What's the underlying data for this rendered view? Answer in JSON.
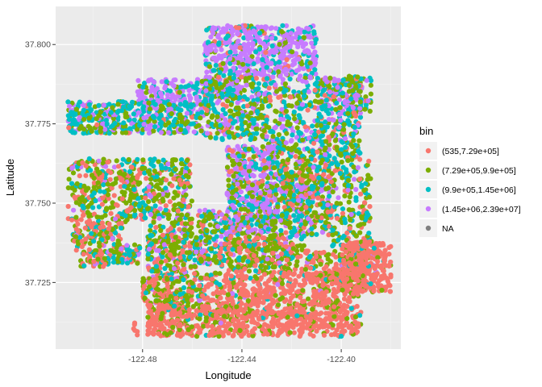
{
  "chart_data": {
    "type": "scatter",
    "xlabel": "Longitude",
    "ylabel": "Latitude",
    "xlim": [
      -122.515,
      -122.376
    ],
    "ylim": [
      37.704,
      37.812
    ],
    "xticks": [
      -122.48,
      -122.44,
      -122.4
    ],
    "xtick_labels": [
      "-122.48",
      "-122.44",
      "-122.40"
    ],
    "yticks": [
      37.725,
      37.75,
      37.775,
      37.8
    ],
    "ytick_labels": [
      "37.725",
      "37.750",
      "37.775",
      "37.800"
    ],
    "grid": true,
    "legend": {
      "title": "bin",
      "placement": "right",
      "entries": [
        {
          "label": "(535,7.29e+05]",
          "color": "#F8766D"
        },
        {
          "label": "(7.29e+05,9.9e+05]",
          "color": "#7CAE00"
        },
        {
          "label": "(9.9e+05,1.45e+06]",
          "color": "#00BFC4"
        },
        {
          "label": "(1.45e+06,2.39e+07]",
          "color": "#C77CFF"
        },
        {
          "label": "NA",
          "color": "#808080"
        }
      ]
    },
    "regions": [
      {
        "lon": [
          -122.455,
          -122.41
        ],
        "lat": [
          37.79,
          37.806
        ],
        "n": 520,
        "w": [
          0.05,
          0.1,
          0.2,
          0.65
        ]
      },
      {
        "lon": [
          -122.41,
          -122.388
        ],
        "lat": [
          37.778,
          37.79
        ],
        "n": 120,
        "w": [
          0.1,
          0.25,
          0.35,
          0.3
        ]
      },
      {
        "lon": [
          -122.482,
          -122.44
        ],
        "lat": [
          37.782,
          37.789
        ],
        "n": 190,
        "w": [
          0.05,
          0.1,
          0.2,
          0.65
        ]
      },
      {
        "lon": [
          -122.51,
          -122.48
        ],
        "lat": [
          37.772,
          37.782
        ],
        "n": 260,
        "w": [
          0.05,
          0.25,
          0.45,
          0.25
        ]
      },
      {
        "lon": [
          -122.48,
          -122.455
        ],
        "lat": [
          37.772,
          37.782
        ],
        "n": 210,
        "w": [
          0.05,
          0.25,
          0.4,
          0.3
        ]
      },
      {
        "lon": [
          -122.455,
          -122.43
        ],
        "lat": [
          37.77,
          37.79
        ],
        "n": 300,
        "w": [
          0.1,
          0.35,
          0.35,
          0.2
        ]
      },
      {
        "lon": [
          -122.43,
          -122.392
        ],
        "lat": [
          37.764,
          37.79
        ],
        "n": 460,
        "w": [
          0.1,
          0.3,
          0.35,
          0.25
        ]
      },
      {
        "lon": [
          -122.51,
          -122.478
        ],
        "lat": [
          37.744,
          37.764
        ],
        "n": 340,
        "w": [
          0.3,
          0.5,
          0.15,
          0.05
        ]
      },
      {
        "lon": [
          -122.478,
          -122.46
        ],
        "lat": [
          37.738,
          37.764
        ],
        "n": 250,
        "w": [
          0.15,
          0.5,
          0.25,
          0.1
        ]
      },
      {
        "lon": [
          -122.508,
          -122.488
        ],
        "lat": [
          37.734,
          37.744
        ],
        "n": 140,
        "w": [
          0.4,
          0.35,
          0.2,
          0.05
        ]
      },
      {
        "lon": [
          -122.505,
          -122.493
        ],
        "lat": [
          37.73,
          37.734
        ],
        "n": 45,
        "w": [
          0.4,
          0.3,
          0.25,
          0.05
        ]
      },
      {
        "lon": [
          -122.492,
          -122.481
        ],
        "lat": [
          37.731,
          37.737
        ],
        "n": 55,
        "w": [
          0.2,
          0.3,
          0.4,
          0.1
        ]
      },
      {
        "lon": [
          -122.446,
          -122.425
        ],
        "lat": [
          37.74,
          37.768
        ],
        "n": 520,
        "w": [
          0.1,
          0.25,
          0.25,
          0.4
        ]
      },
      {
        "lon": [
          -122.425,
          -122.404
        ],
        "lat": [
          37.74,
          37.764
        ],
        "n": 420,
        "w": [
          0.2,
          0.35,
          0.3,
          0.15
        ]
      },
      {
        "lon": [
          -122.404,
          -122.388
        ],
        "lat": [
          37.734,
          37.766
        ],
        "n": 200,
        "w": [
          0.15,
          0.5,
          0.3,
          0.05
        ]
      },
      {
        "lon": [
          -122.458,
          -122.446
        ],
        "lat": [
          37.73,
          37.748
        ],
        "n": 150,
        "w": [
          0.2,
          0.35,
          0.25,
          0.2
        ]
      },
      {
        "lon": [
          -122.478,
          -122.458
        ],
        "lat": [
          37.727,
          37.74
        ],
        "n": 190,
        "w": [
          0.25,
          0.4,
          0.25,
          0.1
        ]
      },
      {
        "lon": [
          -122.446,
          -122.415
        ],
        "lat": [
          37.728,
          37.74
        ],
        "n": 280,
        "w": [
          0.35,
          0.45,
          0.15,
          0.05
        ]
      },
      {
        "lon": [
          -122.415,
          -122.39
        ],
        "lat": [
          37.725,
          37.735
        ],
        "n": 160,
        "w": [
          0.55,
          0.3,
          0.1,
          0.05
        ]
      },
      {
        "lon": [
          -122.4,
          -122.38
        ],
        "lat": [
          37.722,
          37.738
        ],
        "n": 300,
        "w": [
          0.8,
          0.1,
          0.08,
          0.02
        ]
      },
      {
        "lon": [
          -122.48,
          -122.455
        ],
        "lat": [
          37.718,
          37.727
        ],
        "n": 170,
        "w": [
          0.35,
          0.45,
          0.15,
          0.05
        ]
      },
      {
        "lon": [
          -122.455,
          -122.41
        ],
        "lat": [
          37.714,
          37.728
        ],
        "n": 380,
        "w": [
          0.75,
          0.2,
          0.04,
          0.01
        ]
      },
      {
        "lon": [
          -122.478,
          -122.44
        ],
        "lat": [
          37.708,
          37.718
        ],
        "n": 330,
        "w": [
          0.75,
          0.22,
          0.02,
          0.01
        ]
      },
      {
        "lon": [
          -122.44,
          -122.392
        ],
        "lat": [
          37.708,
          37.716
        ],
        "n": 260,
        "w": [
          0.85,
          0.13,
          0.01,
          0.01
        ]
      },
      {
        "lon": [
          -122.412,
          -122.393
        ],
        "lat": [
          37.716,
          37.728
        ],
        "n": 170,
        "w": [
          0.75,
          0.2,
          0.04,
          0.01
        ]
      },
      {
        "lon": [
          -122.484,
          -122.482
        ],
        "lat": [
          37.708,
          37.713
        ],
        "n": 6,
        "w": [
          1,
          0,
          0,
          0
        ]
      }
    ]
  }
}
